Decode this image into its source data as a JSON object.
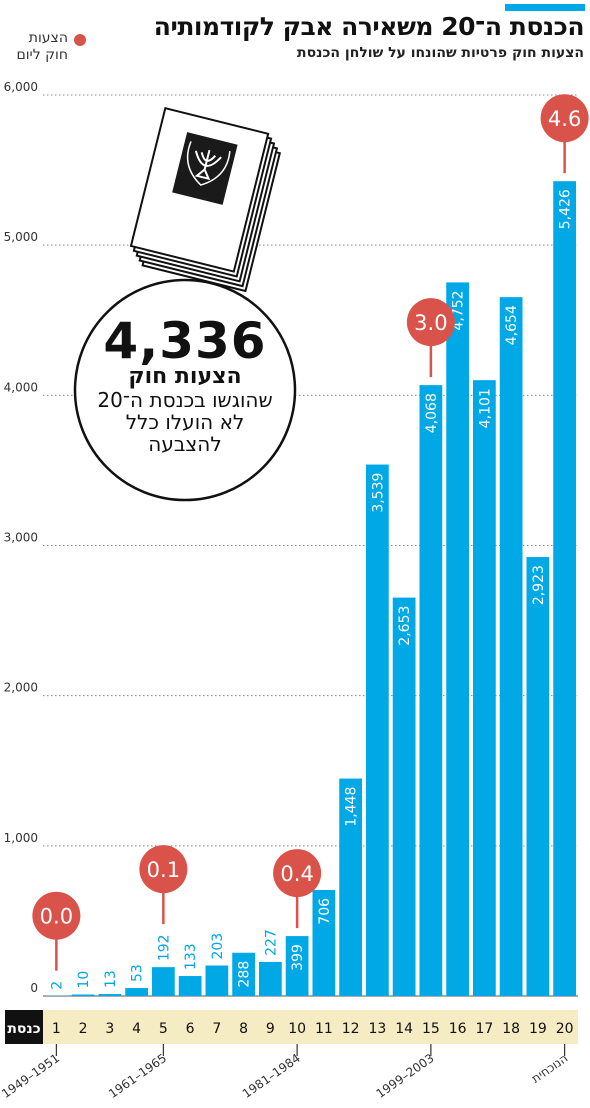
{
  "header": {
    "title": "הכנסת ה־20 משאירה אבק לקודמותיה",
    "subtitle": "הצעות חוק פרטיות שהונחו על שולחן הכנסת"
  },
  "legend": {
    "line1": "הצעות",
    "line2": "חוק ליום",
    "color": "#d9534a"
  },
  "callout": {
    "number": "4,336",
    "label": "הצעות חוק",
    "line1": "שהוגשו בכנסת ה־20",
    "line2": "לא הועלו כלל",
    "line3": "להצבעה"
  },
  "chart_data": {
    "type": "bar",
    "y_ticks": [
      "6,000",
      "5,000",
      "4,000",
      "3,000",
      "2,000",
      "1,000",
      "0"
    ],
    "ylim": [
      0,
      6000
    ],
    "grid": true,
    "bar_color": "#00a8e6",
    "axis_label": "כנסת",
    "categories": [
      "1",
      "2",
      "3",
      "4",
      "5",
      "6",
      "7",
      "8",
      "9",
      "10",
      "11",
      "12",
      "13",
      "14",
      "15",
      "16",
      "17",
      "18",
      "19",
      "20"
    ],
    "values": [
      2,
      10,
      13,
      53,
      192,
      133,
      203,
      288,
      227,
      399,
      706,
      1448,
      3539,
      2653,
      4068,
      4752,
      4101,
      4654,
      2923,
      5426
    ],
    "value_labels": [
      "2",
      "10",
      "13",
      "53",
      "192",
      "133",
      "203",
      "288",
      "227",
      "399",
      "706",
      "1,448",
      "3,539",
      "2,653",
      "4,068",
      "4,752",
      "4,101",
      "4,654",
      "2,923",
      "5,426"
    ],
    "period_labels": [
      {
        "knesset_index": 0,
        "text": "1949–1951"
      },
      {
        "knesset_index": 4,
        "text": "1961–1965"
      },
      {
        "knesset_index": 9,
        "text": "1981–1984"
      },
      {
        "knesset_index": 14,
        "text": "1999–2003"
      },
      {
        "knesset_index": 19,
        "text": "הנוכחית"
      }
    ],
    "bills_per_day": [
      {
        "knesset_index": 0,
        "value": "0.0"
      },
      {
        "knesset_index": 4,
        "value": "0.1"
      },
      {
        "knesset_index": 9,
        "value": "0.4"
      },
      {
        "knesset_index": 14,
        "value": "3.0"
      },
      {
        "knesset_index": 19,
        "value": "4.6"
      }
    ],
    "bubble_color": "#d9534a"
  }
}
